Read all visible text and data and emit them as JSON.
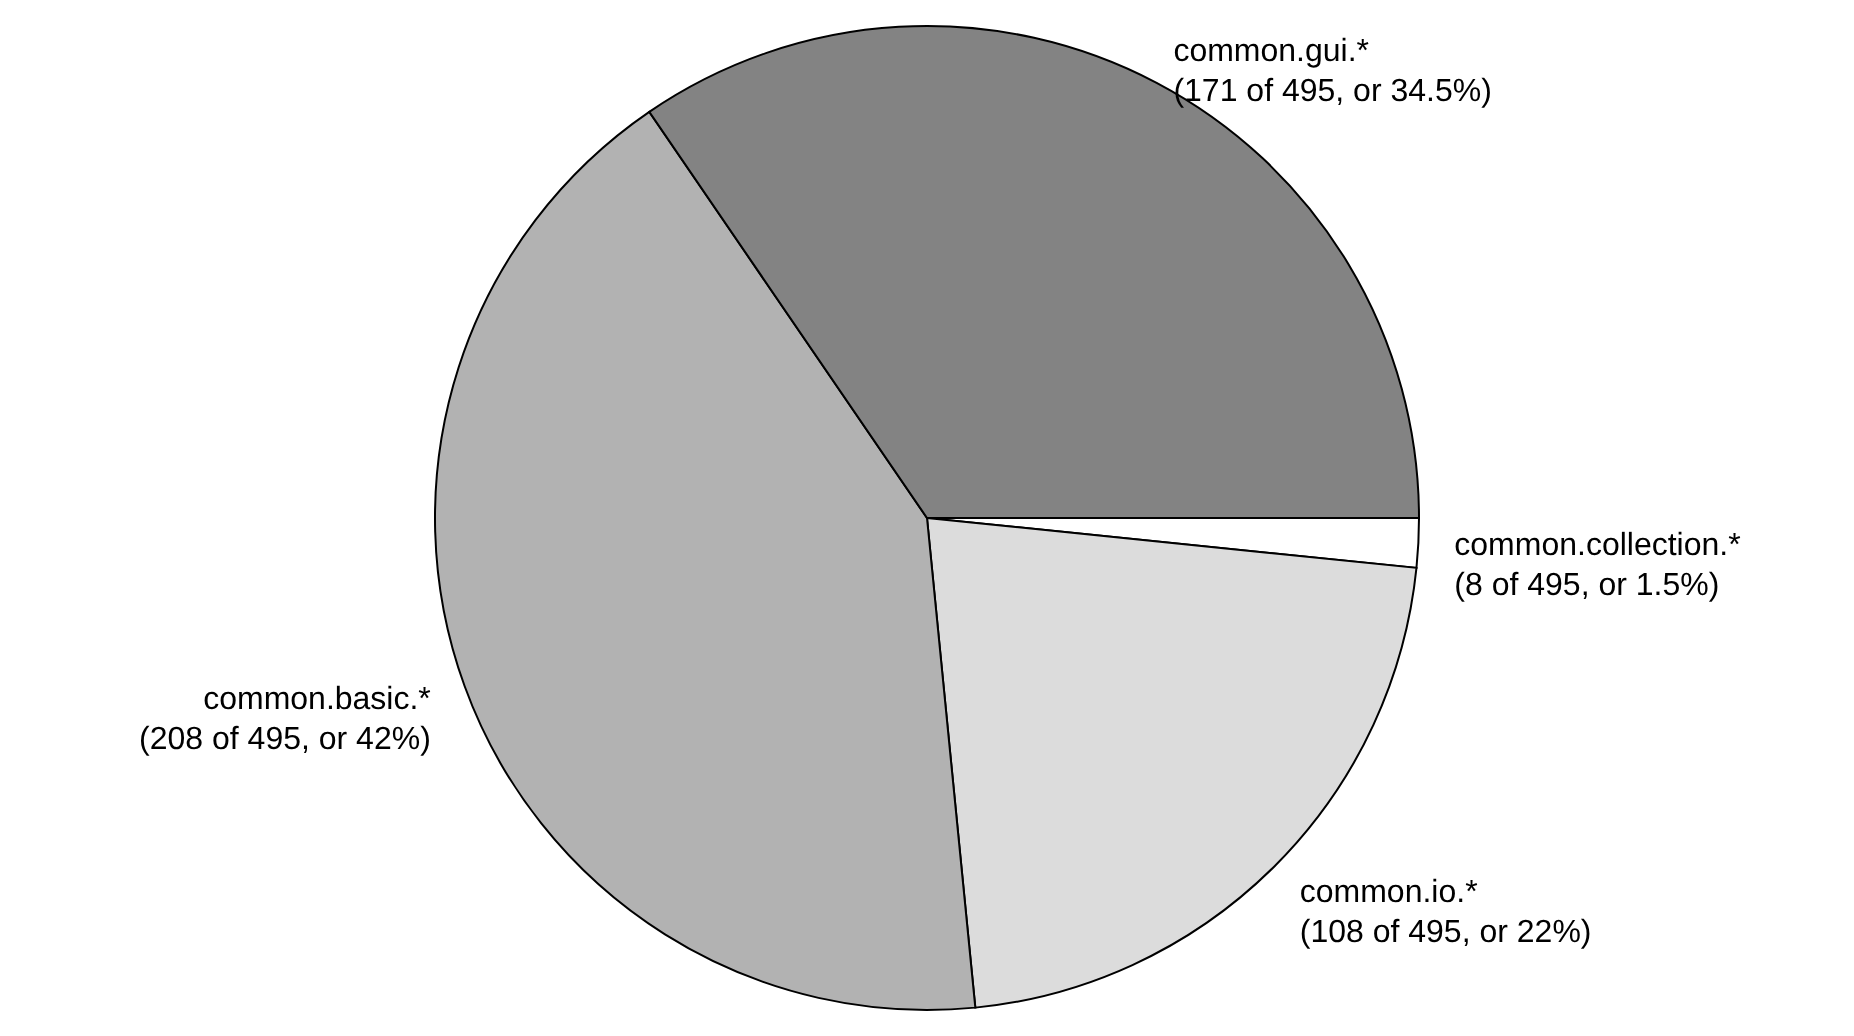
{
  "chart_data": {
    "type": "pie",
    "categories": [
      "common.collection.*",
      "common.io.*",
      "common.basic.*",
      "common.gui.*"
    ],
    "values": [
      8,
      108,
      208,
      171
    ],
    "colors": [
      "#ffffff",
      "#dcdcdc",
      "#b2b2b2",
      "#838383"
    ],
    "value_labels": [
      "(8 of 495, or 1.5%)",
      "(108 of 495, or 22%)",
      "(208 of 495, or 42%)",
      "(171 of 495, or 34.5%)"
    ]
  }
}
